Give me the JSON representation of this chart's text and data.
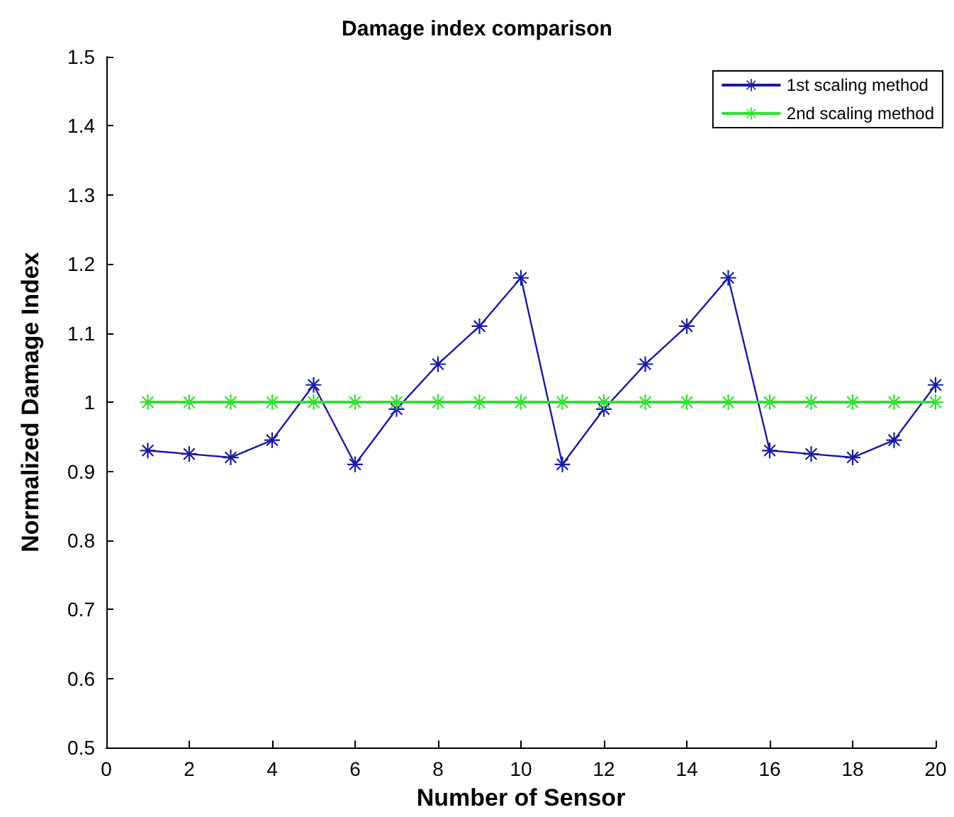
{
  "chart_data": {
    "type": "line",
    "title": "Damage index comparison",
    "xlabel": "Number of Sensor",
    "ylabel": "Normalized Damage Index",
    "x": [
      1,
      2,
      3,
      4,
      5,
      6,
      7,
      8,
      9,
      10,
      11,
      12,
      13,
      14,
      15,
      16,
      17,
      18,
      19,
      20
    ],
    "series": [
      {
        "name": "1st scaling method",
        "color": "#1a1aa0",
        "values": [
          0.93,
          0.925,
          0.92,
          0.945,
          1.025,
          0.91,
          0.99,
          1.055,
          1.11,
          1.18,
          0.91,
          0.99,
          1.055,
          1.11,
          1.18,
          0.93,
          0.925,
          0.92,
          0.945,
          1.025
        ]
      },
      {
        "name": "2nd scaling method",
        "color": "#33e033",
        "values": [
          1,
          1,
          1,
          1,
          1,
          1,
          1,
          1,
          1,
          1,
          1,
          1,
          1,
          1,
          1,
          1,
          1,
          1,
          1,
          1
        ]
      }
    ],
    "xlim": [
      0,
      20
    ],
    "xticks": [
      0,
      2,
      4,
      6,
      8,
      10,
      12,
      14,
      16,
      18,
      20
    ],
    "ylim": [
      0.5,
      1.5
    ],
    "yticks": [
      0.5,
      0.6,
      0.7,
      0.8,
      0.9,
      1,
      1.1,
      1.2,
      1.3,
      1.4,
      1.5
    ],
    "grid": false,
    "legend": "top right",
    "marker": "star",
    "line_style": "solid"
  }
}
